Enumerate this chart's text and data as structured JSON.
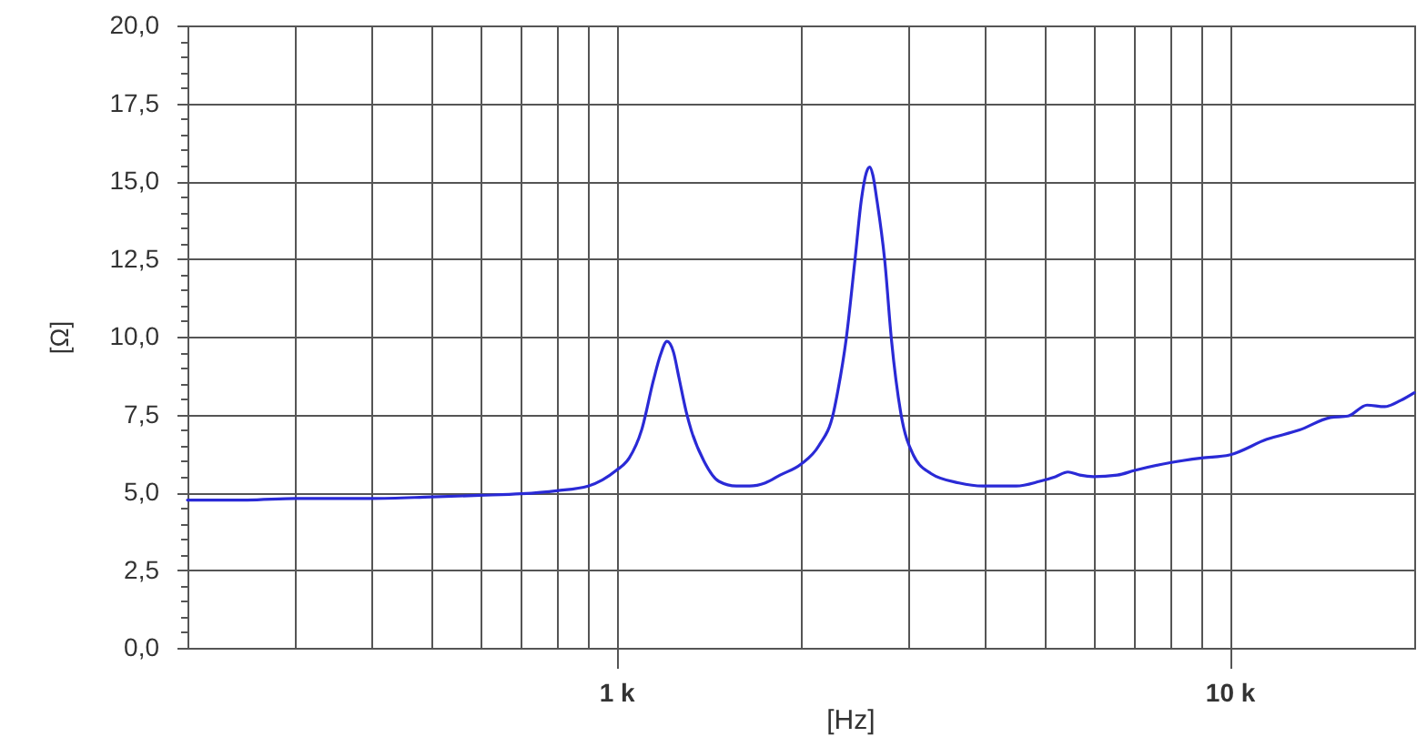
{
  "chart_data": {
    "type": "line",
    "xlabel": "[Hz]",
    "ylabel": "[Ω]",
    "log": "x",
    "grid": true,
    "xlim": [
      200,
      20000
    ],
    "ylim": [
      0,
      20
    ],
    "xticks": [
      {
        "value": 300,
        "label": null
      },
      {
        "value": 400,
        "label": null
      },
      {
        "value": 500,
        "label": null
      },
      {
        "value": 600,
        "label": null
      },
      {
        "value": 700,
        "label": null
      },
      {
        "value": 800,
        "label": null
      },
      {
        "value": 900,
        "label": null
      },
      {
        "value": 1000,
        "label": "1 k"
      },
      {
        "value": 2000,
        "label": null
      },
      {
        "value": 3000,
        "label": null
      },
      {
        "value": 4000,
        "label": null
      },
      {
        "value": 5000,
        "label": null
      },
      {
        "value": 6000,
        "label": null
      },
      {
        "value": 7000,
        "label": null
      },
      {
        "value": 8000,
        "label": null
      },
      {
        "value": 9000,
        "label": null
      },
      {
        "value": 10000,
        "label": "10 k"
      }
    ],
    "yticks": [
      {
        "value": 0,
        "label": "0,0"
      },
      {
        "value": 0.5,
        "label": null
      },
      {
        "value": 1,
        "label": null
      },
      {
        "value": 1.5,
        "label": null
      },
      {
        "value": 2,
        "label": null
      },
      {
        "value": 2.5,
        "label": "2,5"
      },
      {
        "value": 3,
        "label": null
      },
      {
        "value": 3.5,
        "label": null
      },
      {
        "value": 4,
        "label": null
      },
      {
        "value": 4.5,
        "label": null
      },
      {
        "value": 5,
        "label": "5,0"
      },
      {
        "value": 5.5,
        "label": null
      },
      {
        "value": 6,
        "label": null
      },
      {
        "value": 6.5,
        "label": null
      },
      {
        "value": 7,
        "label": null
      },
      {
        "value": 7.5,
        "label": "7,5"
      },
      {
        "value": 8,
        "label": null
      },
      {
        "value": 8.5,
        "label": null
      },
      {
        "value": 9,
        "label": null
      },
      {
        "value": 9.5,
        "label": null
      },
      {
        "value": 10,
        "label": "10,0"
      },
      {
        "value": 10.5,
        "label": null
      },
      {
        "value": 11,
        "label": null
      },
      {
        "value": 11.5,
        "label": null
      },
      {
        "value": 12,
        "label": null
      },
      {
        "value": 12.5,
        "label": "12,5"
      },
      {
        "value": 13,
        "label": null
      },
      {
        "value": 13.5,
        "label": null
      },
      {
        "value": 14,
        "label": null
      },
      {
        "value": 14.5,
        "label": null
      },
      {
        "value": 15,
        "label": "15,0"
      },
      {
        "value": 15.5,
        "label": null
      },
      {
        "value": 16,
        "label": null
      },
      {
        "value": 16.5,
        "label": null
      },
      {
        "value": 17,
        "label": null
      },
      {
        "value": 17.5,
        "label": "17,5"
      },
      {
        "value": 18,
        "label": null
      },
      {
        "value": 18.5,
        "label": null
      },
      {
        "value": 19,
        "label": null
      },
      {
        "value": 19.5,
        "label": null
      },
      {
        "value": 20,
        "label": "20,0"
      }
    ],
    "x": [
      200,
      250,
      300,
      400,
      500,
      600,
      700,
      800,
      900,
      950,
      1000,
      1050,
      1100,
      1150,
      1180,
      1210,
      1240,
      1265,
      1300,
      1325,
      1390,
      1470,
      1570,
      1650,
      1750,
      1850,
      2000,
      2140,
      2260,
      2300,
      2370,
      2450,
      2510,
      2560,
      2590,
      2620,
      2660,
      2740,
      2810,
      2910,
      3050,
      3260,
      3620,
      3960,
      4490,
      4900,
      5200,
      5450,
      5700,
      6000,
      6560,
      7000,
      8000,
      9000,
      10000,
      11500,
      13000,
      14600,
      15600,
      16750,
      17900,
      19000,
      20000
    ],
    "series": [
      {
        "color": "#2a2ad6",
        "values": [
          4.75,
          4.75,
          4.8,
          4.8,
          4.85,
          4.9,
          4.95,
          5.05,
          5.2,
          5.4,
          5.7,
          6.1,
          7.0,
          8.6,
          9.4,
          9.85,
          9.5,
          8.7,
          7.6,
          7.0,
          6.0,
          5.35,
          5.2,
          5.2,
          5.3,
          5.55,
          5.9,
          6.5,
          7.55,
          8.3,
          9.9,
          12.45,
          14.4,
          15.3,
          15.45,
          15.2,
          14.4,
          12.45,
          9.9,
          7.55,
          6.2,
          5.6,
          5.3,
          5.2,
          5.2,
          5.35,
          5.5,
          5.65,
          5.55,
          5.5,
          5.55,
          5.7,
          5.95,
          6.1,
          6.2,
          6.7,
          7.0,
          7.4,
          7.45,
          7.8,
          7.75,
          7.95,
          8.2
        ]
      }
    ]
  }
}
